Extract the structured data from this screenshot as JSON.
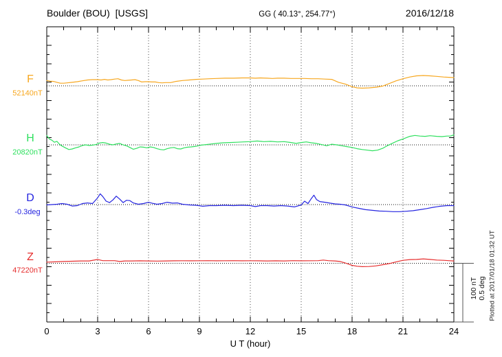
{
  "header": {
    "station": "Boulder (BOU)  [USGS]",
    "coords": "GG ( 40.13°, 254.77°)",
    "date": "2016/12/18"
  },
  "chart_data": {
    "type": "line",
    "title": "Boulder (BOU)  [USGS]",
    "xlabel": "U T (hour)",
    "x_range": [
      0,
      24
    ],
    "x_ticks": [
      0,
      3,
      6,
      9,
      12,
      15,
      18,
      21,
      24
    ],
    "grid": {
      "vertical_dotted_hours": [
        3,
        6,
        9,
        12,
        15,
        18,
        21
      ],
      "horizontal_dotted_baselines": true
    },
    "scale_bar": {
      "labels": [
        "100 nT",
        "0.5 deg"
      ],
      "nT": 100,
      "deg": 0.5
    },
    "plotted_at": "Plotted at 2017/01/18 01:32 UT",
    "series": [
      {
        "name": "F",
        "unit": "nT",
        "baseline_label": "52140nT",
        "baseline_value": 52140,
        "color": "#f7a71f",
        "points": [
          [
            0,
            9
          ],
          [
            0.2,
            8
          ],
          [
            0.4,
            7.5
          ],
          [
            0.6,
            6
          ],
          [
            0.8,
            4.5
          ],
          [
            1,
            4.5
          ],
          [
            1.2,
            5
          ],
          [
            1.5,
            6
          ],
          [
            1.8,
            7
          ],
          [
            2.1,
            8.5
          ],
          [
            2.4,
            10
          ],
          [
            2.7,
            10.5
          ],
          [
            3,
            10.5
          ],
          [
            3.2,
            10
          ],
          [
            3.4,
            11
          ],
          [
            3.6,
            10
          ],
          [
            3.8,
            10.5
          ],
          [
            4,
            11.5
          ],
          [
            4.2,
            12
          ],
          [
            4.4,
            10
          ],
          [
            4.6,
            9
          ],
          [
            4.8,
            9.5
          ],
          [
            5,
            10
          ],
          [
            5.2,
            10.5
          ],
          [
            5.4,
            9
          ],
          [
            5.6,
            6.5
          ],
          [
            5.8,
            7
          ],
          [
            6,
            7
          ],
          [
            6.2,
            6.5
          ],
          [
            6.4,
            6.5
          ],
          [
            6.6,
            5.5
          ],
          [
            6.8,
            5
          ],
          [
            7,
            5.5
          ],
          [
            7.3,
            5.5
          ],
          [
            7.6,
            7.5
          ],
          [
            8,
            9
          ],
          [
            8.4,
            10
          ],
          [
            8.8,
            11
          ],
          [
            9.2,
            11.5
          ],
          [
            9.6,
            12
          ],
          [
            10,
            12.5
          ],
          [
            10.5,
            13
          ],
          [
            11,
            13
          ],
          [
            11.5,
            13.5
          ],
          [
            12,
            13.5
          ],
          [
            12.3,
            13
          ],
          [
            12.6,
            13.5
          ],
          [
            13,
            13
          ],
          [
            13.3,
            12.5
          ],
          [
            13.6,
            13
          ],
          [
            14,
            13
          ],
          [
            14.4,
            12.5
          ],
          [
            14.8,
            12.5
          ],
          [
            15.2,
            12.5
          ],
          [
            15.6,
            12
          ],
          [
            16,
            12
          ],
          [
            16.4,
            11.5
          ],
          [
            16.8,
            11
          ],
          [
            17.2,
            6
          ],
          [
            17.6,
            3
          ],
          [
            18,
            -1.5
          ],
          [
            18.3,
            -3.5
          ],
          [
            18.6,
            -4
          ],
          [
            19,
            -3.5
          ],
          [
            19.4,
            -2.5
          ],
          [
            19.8,
            -0.5
          ],
          [
            20.2,
            4
          ],
          [
            20.6,
            8.5
          ],
          [
            21,
            12
          ],
          [
            21.4,
            15
          ],
          [
            21.8,
            17
          ],
          [
            22.2,
            17.5
          ],
          [
            22.6,
            17
          ],
          [
            23,
            16
          ],
          [
            23.4,
            15
          ],
          [
            23.7,
            14.5
          ],
          [
            24,
            14
          ]
        ]
      },
      {
        "name": "H",
        "unit": "nT",
        "baseline_label": "20820nT",
        "baseline_value": 20820,
        "color": "#2ee05e",
        "points": [
          [
            0,
            16
          ],
          [
            0.15,
            10
          ],
          [
            0.3,
            8
          ],
          [
            0.45,
            4.5
          ],
          [
            0.6,
            6
          ],
          [
            0.75,
            1
          ],
          [
            0.9,
            -2
          ],
          [
            1.1,
            -5
          ],
          [
            1.3,
            -8
          ],
          [
            1.5,
            -7
          ],
          [
            1.7,
            -5
          ],
          [
            1.9,
            -3.5
          ],
          [
            2.1,
            -1
          ],
          [
            2.3,
            0
          ],
          [
            2.5,
            -1
          ],
          [
            2.7,
            -0.5
          ],
          [
            2.9,
            0.5
          ],
          [
            3.1,
            3
          ],
          [
            3.3,
            4
          ],
          [
            3.5,
            3
          ],
          [
            3.7,
            1
          ],
          [
            3.9,
            0
          ],
          [
            4.1,
            1.5
          ],
          [
            4.3,
            2.5
          ],
          [
            4.5,
            0
          ],
          [
            4.7,
            -1.5
          ],
          [
            4.9,
            -4.5
          ],
          [
            5.1,
            -7.5
          ],
          [
            5.3,
            -6
          ],
          [
            5.5,
            -3.5
          ],
          [
            5.7,
            -4
          ],
          [
            5.9,
            -5
          ],
          [
            6.1,
            -3.5
          ],
          [
            6.3,
            -4.5
          ],
          [
            6.5,
            -6.5
          ],
          [
            6.7,
            -8
          ],
          [
            6.9,
            -8.5
          ],
          [
            7.1,
            -6.5
          ],
          [
            7.3,
            -5
          ],
          [
            7.5,
            -4.5
          ],
          [
            7.7,
            -6.5
          ],
          [
            7.9,
            -7
          ],
          [
            8.1,
            -5
          ],
          [
            8.3,
            -4
          ],
          [
            8.5,
            -3.5
          ],
          [
            8.8,
            -2.5
          ],
          [
            9.1,
            -0.5
          ],
          [
            9.4,
            0.5
          ],
          [
            9.7,
            1.5
          ],
          [
            10,
            2.5
          ],
          [
            10.4,
            3.5
          ],
          [
            10.8,
            4
          ],
          [
            11.2,
            4.5
          ],
          [
            11.6,
            5
          ],
          [
            12,
            5.5
          ],
          [
            12.4,
            6.5
          ],
          [
            12.8,
            5.5
          ],
          [
            13.2,
            6
          ],
          [
            13.6,
            5
          ],
          [
            14,
            5.5
          ],
          [
            14.4,
            4
          ],
          [
            14.7,
            2.5
          ],
          [
            15,
            4
          ],
          [
            15.3,
            5
          ],
          [
            15.6,
            3.5
          ],
          [
            15.9,
            2.5
          ],
          [
            16.2,
            0.5
          ],
          [
            16.5,
            -1.5
          ],
          [
            16.8,
            1
          ],
          [
            17.1,
            0
          ],
          [
            17.4,
            -1.5
          ],
          [
            17.7,
            -3
          ],
          [
            18,
            -4.5
          ],
          [
            18.3,
            -6.5
          ],
          [
            18.6,
            -8
          ],
          [
            18.9,
            -9
          ],
          [
            19.2,
            -10
          ],
          [
            19.5,
            -9
          ],
          [
            19.8,
            -6
          ],
          [
            20.1,
            -1
          ],
          [
            20.4,
            3
          ],
          [
            20.7,
            7
          ],
          [
            21,
            10
          ],
          [
            21.4,
            14.5
          ],
          [
            21.7,
            16
          ],
          [
            22,
            15
          ],
          [
            22.3,
            14.5
          ],
          [
            22.6,
            15.5
          ],
          [
            23,
            14.5
          ],
          [
            23.3,
            14
          ],
          [
            23.6,
            15
          ],
          [
            23.8,
            15
          ],
          [
            24,
            17
          ]
        ]
      },
      {
        "name": "D",
        "unit": "deg",
        "baseline_label": "-0.3deg",
        "baseline_value": -0.3,
        "color": "#2424e0",
        "points": [
          [
            0,
            -0.003
          ],
          [
            0.3,
            0
          ],
          [
            0.6,
            0.003
          ],
          [
            0.9,
            0.009
          ],
          [
            1.2,
            0.003
          ],
          [
            1.5,
            -0.012
          ],
          [
            1.8,
            -0.009
          ],
          [
            2.1,
            0.009
          ],
          [
            2.4,
            0.014
          ],
          [
            2.7,
            0.009
          ],
          [
            3,
            0.058
          ],
          [
            3.15,
            0.092
          ],
          [
            3.3,
            0.069
          ],
          [
            3.5,
            0.029
          ],
          [
            3.7,
            0.017
          ],
          [
            3.9,
            0.04
          ],
          [
            4.1,
            0.072
          ],
          [
            4.3,
            0.046
          ],
          [
            4.5,
            0.017
          ],
          [
            4.7,
            0.037
          ],
          [
            4.9,
            0.034
          ],
          [
            5.1,
            0.014
          ],
          [
            5.4,
            0.003
          ],
          [
            5.7,
            0.009
          ],
          [
            6,
            0.02
          ],
          [
            6.2,
            0.012
          ],
          [
            6.5,
            0.003
          ],
          [
            6.8,
            0.009
          ],
          [
            7.1,
            0.02
          ],
          [
            7.4,
            0.012
          ],
          [
            7.7,
            0.014
          ],
          [
            8,
            0.003
          ],
          [
            8.4,
            -0.003
          ],
          [
            8.8,
            -0.006
          ],
          [
            9.2,
            -0.014
          ],
          [
            9.6,
            -0.009
          ],
          [
            10,
            -0.009
          ],
          [
            10.5,
            -0.006
          ],
          [
            11,
            -0.009
          ],
          [
            11.5,
            -0.006
          ],
          [
            12,
            -0.009
          ],
          [
            12.3,
            -0.017
          ],
          [
            12.6,
            -0.009
          ],
          [
            13,
            -0.009
          ],
          [
            13.4,
            -0.012
          ],
          [
            13.8,
            -0.009
          ],
          [
            14.2,
            -0.012
          ],
          [
            14.6,
            -0.02
          ],
          [
            15,
            -0.003
          ],
          [
            15.2,
            0.029
          ],
          [
            15.4,
            0.009
          ],
          [
            15.6,
            0.052
          ],
          [
            15.75,
            0.08
          ],
          [
            15.9,
            0.043
          ],
          [
            16.1,
            0.026
          ],
          [
            16.4,
            0.02
          ],
          [
            16.7,
            0.012
          ],
          [
            17,
            0.006
          ],
          [
            17.3,
            0.003
          ],
          [
            17.6,
            -0.003
          ],
          [
            18,
            -0.02
          ],
          [
            18.4,
            -0.032
          ],
          [
            18.8,
            -0.043
          ],
          [
            19.2,
            -0.049
          ],
          [
            19.6,
            -0.055
          ],
          [
            20,
            -0.057
          ],
          [
            20.4,
            -0.06
          ],
          [
            20.8,
            -0.06
          ],
          [
            21.2,
            -0.057
          ],
          [
            21.6,
            -0.052
          ],
          [
            22,
            -0.043
          ],
          [
            22.4,
            -0.034
          ],
          [
            22.8,
            -0.023
          ],
          [
            23.2,
            -0.014
          ],
          [
            23.6,
            -0.009
          ],
          [
            24,
            -0.009
          ]
        ]
      },
      {
        "name": "Z",
        "unit": "nT",
        "baseline_label": "47220nT",
        "baseline_value": 47220,
        "color": "#e62e2e",
        "points": [
          [
            0,
            2
          ],
          [
            0.5,
            2.5
          ],
          [
            1,
            3
          ],
          [
            1.5,
            3.5
          ],
          [
            2,
            4
          ],
          [
            2.5,
            4
          ],
          [
            3,
            6.5
          ],
          [
            3.3,
            4.5
          ],
          [
            3.6,
            4.5
          ],
          [
            4,
            4.5
          ],
          [
            4.3,
            3
          ],
          [
            4.6,
            4
          ],
          [
            5,
            4
          ],
          [
            5.5,
            4.2
          ],
          [
            6,
            4
          ],
          [
            6.5,
            3.8
          ],
          [
            7,
            4
          ],
          [
            7.5,
            4.2
          ],
          [
            8,
            4.3
          ],
          [
            8.5,
            4.2
          ],
          [
            9,
            4.3
          ],
          [
            9.5,
            4.5
          ],
          [
            10,
            4.2
          ],
          [
            10.5,
            4.3
          ],
          [
            11,
            4.5
          ],
          [
            11.5,
            4.2
          ],
          [
            12,
            4.3
          ],
          [
            12.5,
            4.2
          ],
          [
            13,
            4
          ],
          [
            13.5,
            4.2
          ],
          [
            14,
            4
          ],
          [
            14.5,
            4.5
          ],
          [
            15,
            4.2
          ],
          [
            15.5,
            4.3
          ],
          [
            16,
            4.5
          ],
          [
            16.3,
            5.5
          ],
          [
            16.6,
            4.5
          ],
          [
            17,
            4
          ],
          [
            17.3,
            3
          ],
          [
            17.6,
            0.5
          ],
          [
            18,
            -3.5
          ],
          [
            18.3,
            -5
          ],
          [
            18.6,
            -5.7
          ],
          [
            19,
            -5.5
          ],
          [
            19.4,
            -4.5
          ],
          [
            19.8,
            -2.5
          ],
          [
            20.2,
            -0.5
          ],
          [
            20.6,
            2.5
          ],
          [
            21,
            5
          ],
          [
            21.4,
            6.3
          ],
          [
            21.8,
            6.5
          ],
          [
            22.2,
            7.5
          ],
          [
            22.6,
            6.5
          ],
          [
            23,
            5.5
          ],
          [
            23.4,
            5
          ],
          [
            23.7,
            4.5
          ],
          [
            24,
            4
          ]
        ]
      }
    ]
  }
}
